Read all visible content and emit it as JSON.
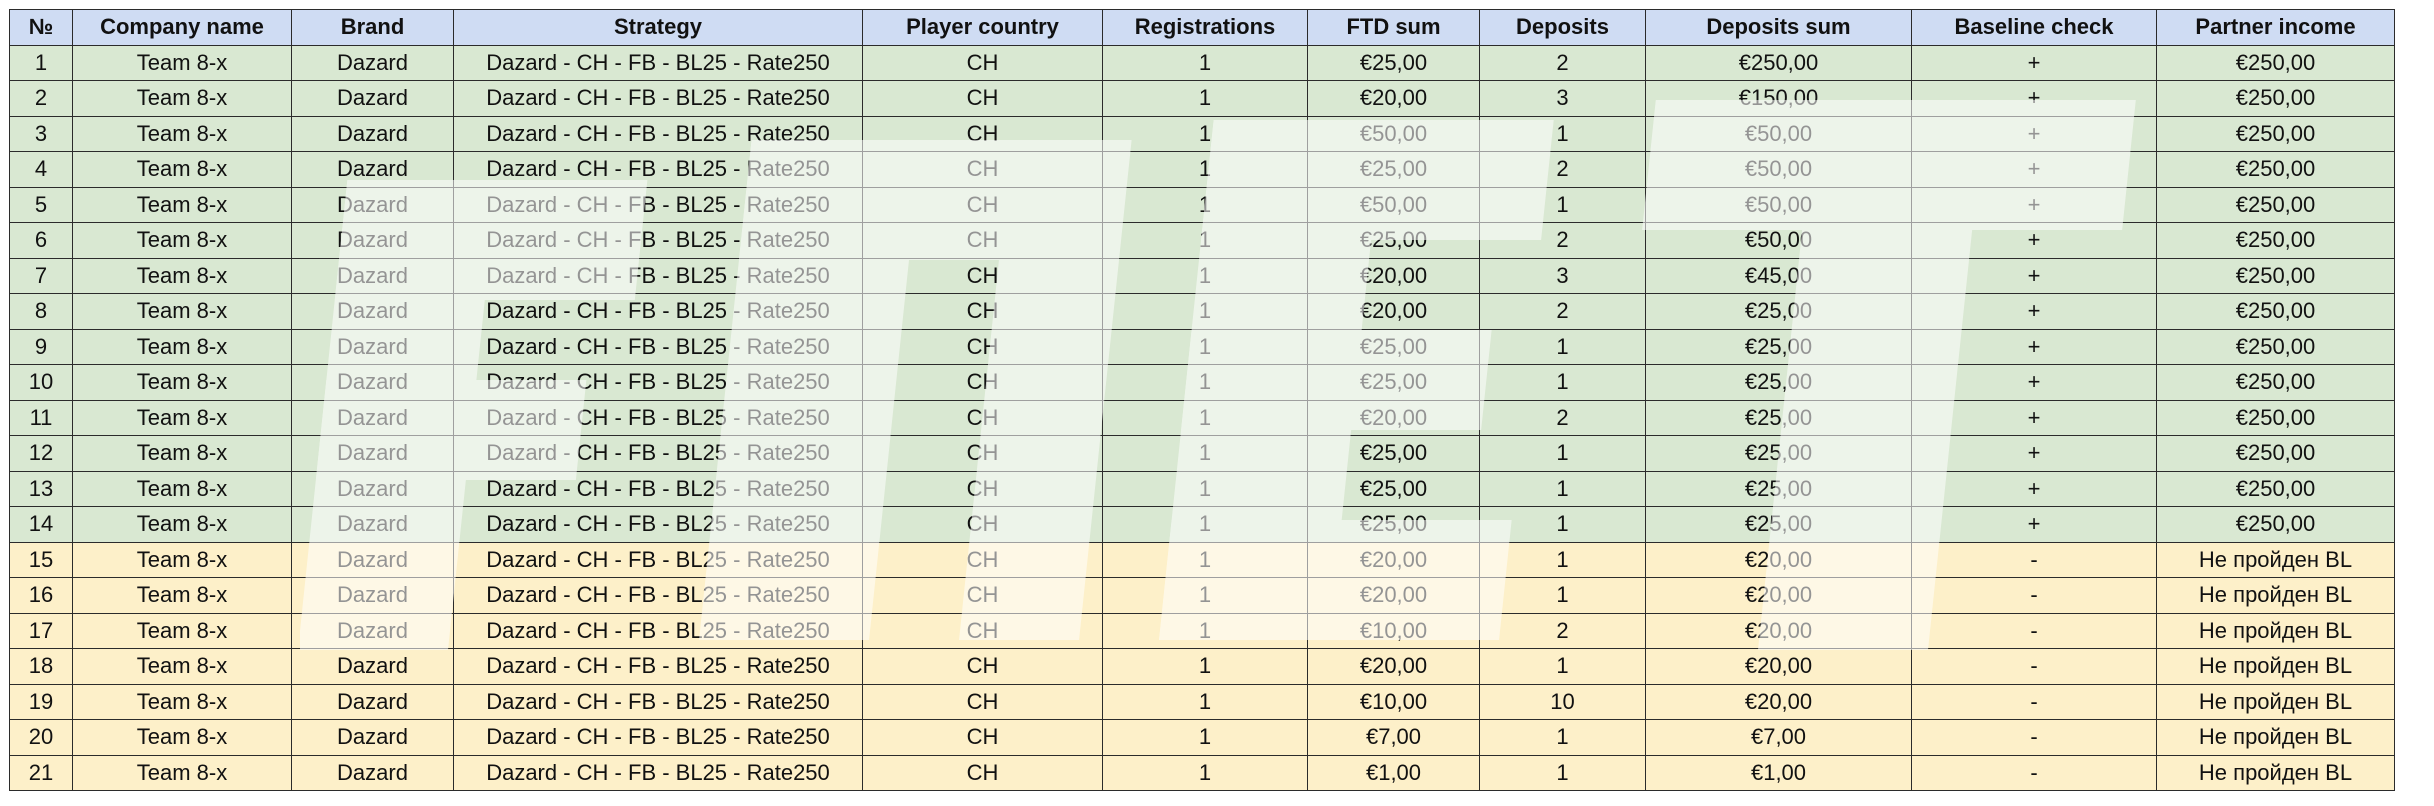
{
  "table": {
    "headers": [
      "№",
      "Company name",
      "Brand",
      "Strategy",
      "Player country",
      "Registrations",
      "FTD sum",
      "Deposits",
      "Deposits sum",
      "Baseline check",
      "Partner income"
    ],
    "rows": [
      {
        "status": "ok",
        "cells": [
          "1",
          "Team 8-x",
          "Dazard",
          "Dazard - CH - FB - BL25 - Rate250",
          "CH",
          "1",
          "€25,00",
          "2",
          "€250,00",
          "+",
          "€250,00"
        ]
      },
      {
        "status": "ok",
        "cells": [
          "2",
          "Team 8-x",
          "Dazard",
          "Dazard - CH - FB - BL25 - Rate250",
          "CH",
          "1",
          "€20,00",
          "3",
          "€150,00",
          "+",
          "€250,00"
        ]
      },
      {
        "status": "ok",
        "cells": [
          "3",
          "Team 8-x",
          "Dazard",
          "Dazard - CH - FB - BL25 - Rate250",
          "CH",
          "1",
          "€50,00",
          "1",
          "€50,00",
          "+",
          "€250,00"
        ]
      },
      {
        "status": "ok",
        "cells": [
          "4",
          "Team 8-x",
          "Dazard",
          "Dazard - CH - FB - BL25 - Rate250",
          "CH",
          "1",
          "€25,00",
          "2",
          "€50,00",
          "+",
          "€250,00"
        ]
      },
      {
        "status": "ok",
        "cells": [
          "5",
          "Team 8-x",
          "Dazard",
          "Dazard - CH - FB - BL25 - Rate250",
          "CH",
          "1",
          "€50,00",
          "1",
          "€50,00",
          "+",
          "€250,00"
        ]
      },
      {
        "status": "ok",
        "cells": [
          "6",
          "Team 8-x",
          "Dazard",
          "Dazard - CH - FB - BL25 - Rate250",
          "CH",
          "1",
          "€25,00",
          "2",
          "€50,00",
          "+",
          "€250,00"
        ]
      },
      {
        "status": "ok",
        "cells": [
          "7",
          "Team 8-x",
          "Dazard",
          "Dazard - CH - FB - BL25 - Rate250",
          "CH",
          "1",
          "€20,00",
          "3",
          "€45,00",
          "+",
          "€250,00"
        ]
      },
      {
        "status": "ok",
        "cells": [
          "8",
          "Team 8-x",
          "Dazard",
          "Dazard - CH - FB - BL25 - Rate250",
          "CH",
          "1",
          "€20,00",
          "2",
          "€25,00",
          "+",
          "€250,00"
        ]
      },
      {
        "status": "ok",
        "cells": [
          "9",
          "Team 8-x",
          "Dazard",
          "Dazard - CH - FB - BL25 - Rate250",
          "CH",
          "1",
          "€25,00",
          "1",
          "€25,00",
          "+",
          "€250,00"
        ]
      },
      {
        "status": "ok",
        "cells": [
          "10",
          "Team 8-x",
          "Dazard",
          "Dazard - CH - FB - BL25 - Rate250",
          "CH",
          "1",
          "€25,00",
          "1",
          "€25,00",
          "+",
          "€250,00"
        ]
      },
      {
        "status": "ok",
        "cells": [
          "11",
          "Team 8-x",
          "Dazard",
          "Dazard - CH - FB - BL25 - Rate250",
          "CH",
          "1",
          "€20,00",
          "2",
          "€25,00",
          "+",
          "€250,00"
        ]
      },
      {
        "status": "ok",
        "cells": [
          "12",
          "Team 8-x",
          "Dazard",
          "Dazard - CH - FB - BL25 - Rate250",
          "CH",
          "1",
          "€25,00",
          "1",
          "€25,00",
          "+",
          "€250,00"
        ]
      },
      {
        "status": "ok",
        "cells": [
          "13",
          "Team 8-x",
          "Dazard",
          "Dazard - CH - FB - BL25 - Rate250",
          "CH",
          "1",
          "€25,00",
          "1",
          "€25,00",
          "+",
          "€250,00"
        ]
      },
      {
        "status": "ok",
        "cells": [
          "14",
          "Team 8-x",
          "Dazard",
          "Dazard - CH - FB - BL25 - Rate250",
          "CH",
          "1",
          "€25,00",
          "1",
          "€25,00",
          "+",
          "€250,00"
        ]
      },
      {
        "status": "fail",
        "cells": [
          "15",
          "Team 8-x",
          "Dazard",
          "Dazard - CH - FB - BL25 - Rate250",
          "CH",
          "1",
          "€20,00",
          "1",
          "€20,00",
          "-",
          "Не пройден BL"
        ]
      },
      {
        "status": "fail",
        "cells": [
          "16",
          "Team 8-x",
          "Dazard",
          "Dazard - CH - FB - BL25 - Rate250",
          "CH",
          "1",
          "€20,00",
          "1",
          "€20,00",
          "-",
          "Не пройден BL"
        ]
      },
      {
        "status": "fail",
        "cells": [
          "17",
          "Team 8-x",
          "Dazard",
          "Dazard - CH - FB - BL25 - Rate250",
          "CH",
          "1",
          "€10,00",
          "2",
          "€20,00",
          "-",
          "Не пройден BL"
        ]
      },
      {
        "status": "fail",
        "cells": [
          "18",
          "Team 8-x",
          "Dazard",
          "Dazard - CH - FB - BL25 - Rate250",
          "CH",
          "1",
          "€20,00",
          "1",
          "€20,00",
          "-",
          "Не пройден BL"
        ]
      },
      {
        "status": "fail",
        "cells": [
          "19",
          "Team 8-x",
          "Dazard",
          "Dazard - CH - FB - BL25 - Rate250",
          "CH",
          "1",
          "€10,00",
          "10",
          "€20,00",
          "-",
          "Не пройден BL"
        ]
      },
      {
        "status": "fail",
        "cells": [
          "20",
          "Team 8-x",
          "Dazard",
          "Dazard - CH - FB - BL25 - Rate250",
          "CH",
          "1",
          "€7,00",
          "1",
          "€7,00",
          "-",
          "Не пройден BL"
        ]
      },
      {
        "status": "fail",
        "cells": [
          "21",
          "Team 8-x",
          "Dazard",
          "Dazard - CH - FB - BL25 - Rate250",
          "CH",
          "1",
          "€1,00",
          "1",
          "€1,00",
          "-",
          "Не пройден BL"
        ]
      }
    ]
  },
  "watermark": {
    "kind": "faded-logo-text",
    "color": "#ffffff"
  }
}
